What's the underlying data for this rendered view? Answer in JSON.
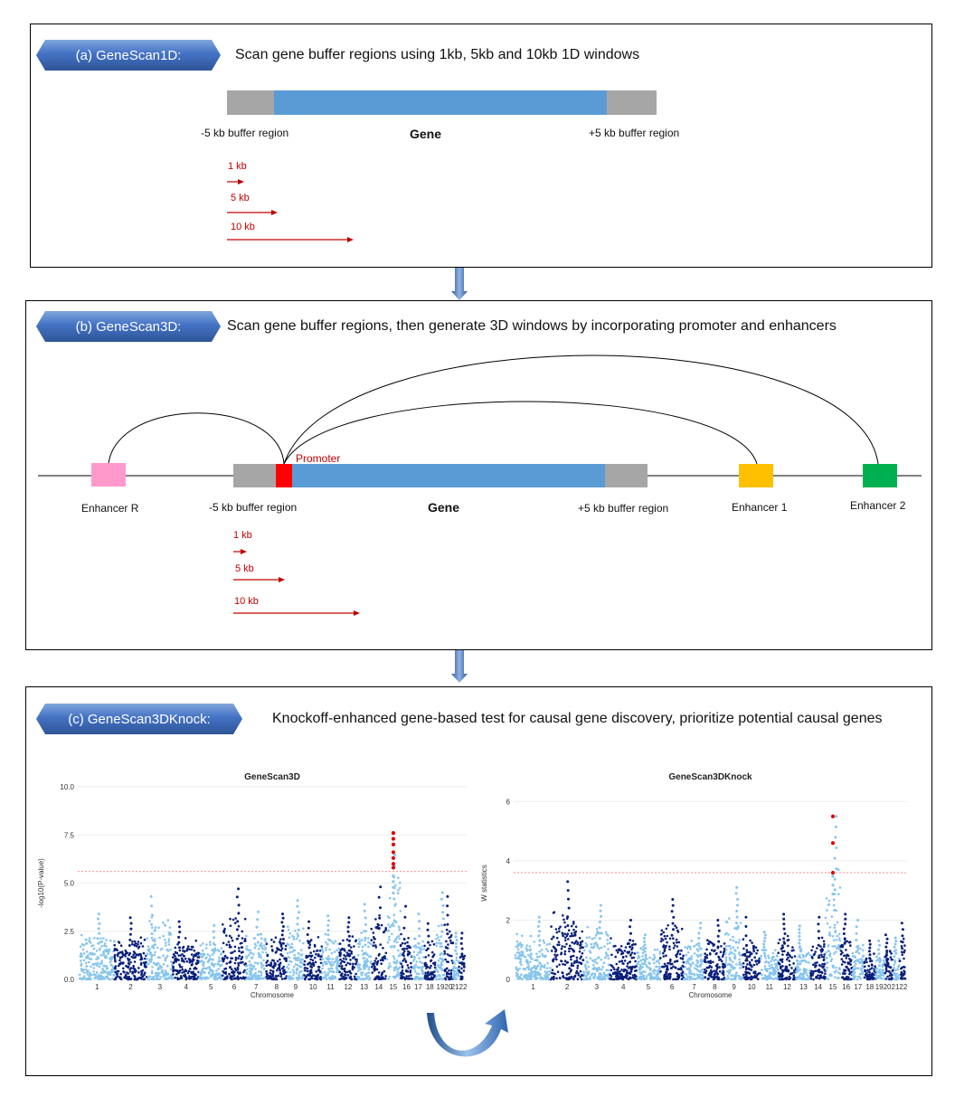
{
  "colors": {
    "gene": "#5b9bd5",
    "buffer": "#a6a6a6",
    "promoter": "#ff0000",
    "enhancer_r": "#ff99cc",
    "enhancer_1": "#ffc000",
    "enhancer_2": "#00b050",
    "window_arrow": "#c00000",
    "light_point": "#87c5ec",
    "dark_point": "#0a1f7a",
    "signal_point": "#e00000",
    "threshold": "#ff6666",
    "tag": "#4472c4"
  },
  "panel_a": {
    "tag": "(a) GeneScan1D:",
    "description": "Scan gene buffer regions using 1kb, 5kb and 10kb 1D windows",
    "left_buffer": "-5 kb buffer  region",
    "gene": "Gene",
    "right_buffer": "+5 kb buffer  region",
    "windows": [
      "1 kb",
      "5 kb",
      "10 kb"
    ]
  },
  "panel_b": {
    "tag": "(b) GeneScan3D:",
    "description": "Scan gene buffer regions, then generate 3D windows by incorporating promoter and enhancers",
    "promoter": "Promoter",
    "enhancer_r": "Enhancer  R",
    "left_buffer": "-5 kb buffer  region",
    "gene": "Gene",
    "right_buffer": "+5 kb buffer  region",
    "enhancer_1": "Enhancer  1",
    "enhancer_2": "Enhancer  2",
    "windows": [
      "1 kb",
      "5 kb",
      "10 kb"
    ]
  },
  "panel_c": {
    "tag": "(c) GeneScan3DKnock:",
    "description": "Knockoff-enhanced gene-based test for causal gene discovery, prioritize potential causal genes"
  },
  "chart_data": [
    {
      "type": "scatter",
      "title": "GeneScan3D",
      "xlabel": "Chromosome",
      "ylabel": "-log10(P-value)",
      "ylim": [
        0,
        10
      ],
      "yticks": [
        "0.0",
        "2.5",
        "5.0",
        "7.5",
        "10.0"
      ],
      "xticks": [
        "1",
        "2",
        "3",
        "4",
        "5",
        "6",
        "7",
        "8",
        "9",
        "10",
        "11",
        "12",
        "13",
        "14",
        "15",
        "16",
        "17",
        "18",
        "19",
        "20",
        "21",
        "22"
      ],
      "xtick_labels_printed": [
        "1",
        "2",
        "3",
        "4",
        "5",
        "6",
        "7",
        "8",
        "9",
        "10",
        "11",
        "12",
        "13",
        "14",
        "15",
        "16",
        "17",
        "18",
        "1920",
        "2122"
      ],
      "threshold": 5.6,
      "chromosome_peaks": [
        3.4,
        3.2,
        4.3,
        3.0,
        2.8,
        4.7,
        3.5,
        3.4,
        4.1,
        3.0,
        3.3,
        3.2,
        3.9,
        4.8,
        7.6,
        3.8,
        3.4,
        2.9,
        4.5,
        4.3,
        2.4,
        2.4
      ],
      "significant_points": [
        {
          "chromosome": 15,
          "values": [
            7.6,
            7.3,
            7.0,
            6.6,
            6.3,
            6.0,
            5.8
          ]
        }
      ]
    },
    {
      "type": "scatter",
      "title": "GeneScan3DKnock",
      "xlabel": "Chromosome",
      "ylabel": "W statistics",
      "ylim": [
        0,
        6.5
      ],
      "yticks": [
        "0",
        "2",
        "4",
        "6"
      ],
      "xticks": [
        "1",
        "2",
        "3",
        "4",
        "5",
        "6",
        "7",
        "8",
        "9",
        "10",
        "11",
        "12",
        "13",
        "14",
        "15",
        "16",
        "17",
        "18",
        "19",
        "20",
        "21",
        "22"
      ],
      "xtick_labels_printed": [
        "1",
        "2",
        "3",
        "4",
        "5",
        "6",
        "7",
        "8",
        "9",
        "10",
        "11",
        "12",
        "13",
        "14",
        "15",
        "16",
        "17",
        "18",
        "19202122"
      ],
      "threshold": 3.6,
      "chromosome_peaks": [
        2.1,
        3.3,
        2.5,
        2.0,
        1.5,
        2.7,
        1.9,
        2.0,
        3.1,
        2.1,
        1.6,
        2.2,
        1.8,
        2.1,
        5.5,
        2.2,
        2.0,
        1.3,
        1.3,
        1.5,
        1.4,
        1.9
      ],
      "significant_points": [
        {
          "chromosome": 15,
          "values": [
            5.5,
            4.6,
            3.6
          ]
        }
      ]
    }
  ]
}
